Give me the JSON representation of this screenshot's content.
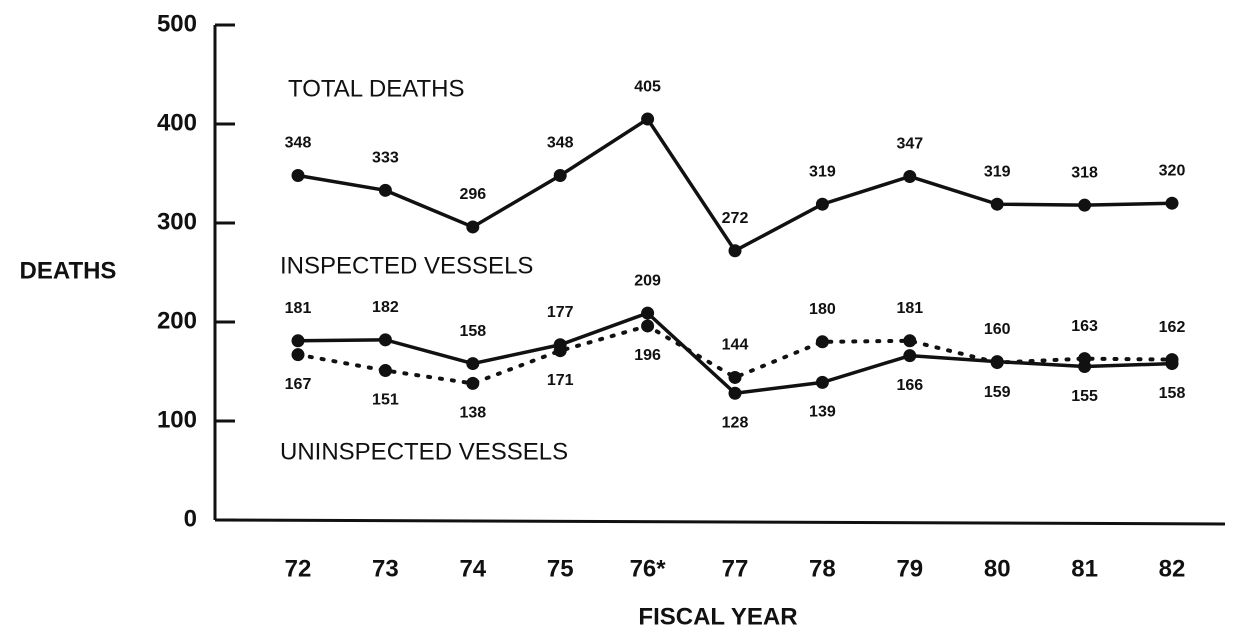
{
  "chart_data": {
    "type": "line",
    "y_label": "DEATHS",
    "x_label": "FISCAL YEAR",
    "categories": [
      "72",
      "73",
      "74",
      "75",
      "76*",
      "77",
      "78",
      "79",
      "80",
      "81",
      "82"
    ],
    "series": [
      {
        "name": "TOTAL DEATHS",
        "color": "#111111",
        "style": "solid",
        "values": [
          348,
          333,
          296,
          348,
          405,
          272,
          319,
          347,
          319,
          318,
          320
        ]
      },
      {
        "name": "INSPECTED VESSELS",
        "color": "#111111",
        "style": "solid",
        "values": [
          181,
          182,
          158,
          177,
          209,
          128,
          139,
          166,
          160,
          155,
          158
        ]
      },
      {
        "name": "UNINSPECTED VESSELS",
        "color": "#111111",
        "style": "dotted",
        "values": [
          167,
          151,
          138,
          171,
          196,
          144,
          180,
          181,
          159,
          163,
          162
        ]
      }
    ],
    "ylim": [
      0,
      500
    ],
    "yticks": [
      0,
      100,
      200,
      300,
      400,
      500
    ],
    "grid": false
  }
}
